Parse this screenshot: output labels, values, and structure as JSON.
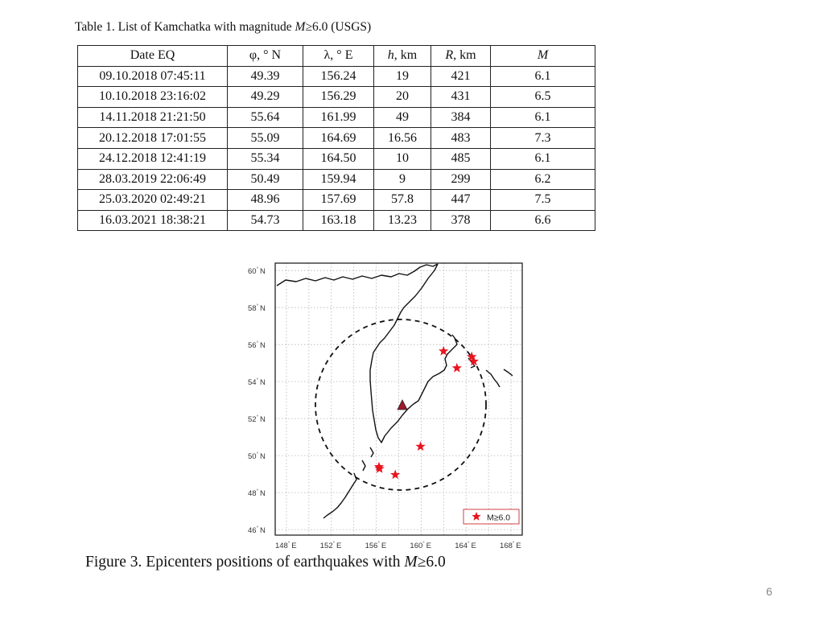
{
  "table": {
    "caption_pre": "Table 1. List of Kamchatka with magnitude ",
    "caption_var": "M",
    "caption_post": "≥6.0 (USGS)",
    "headers": [
      {
        "pre": "Date EQ",
        "var": "",
        "post": ""
      },
      {
        "pre": "φ, ° N",
        "var": "",
        "post": ""
      },
      {
        "pre": "λ, ° E",
        "var": "",
        "post": ""
      },
      {
        "pre": "",
        "var": "h",
        "post": ", km"
      },
      {
        "pre": "",
        "var": "R",
        "post": ", km"
      },
      {
        "pre": "",
        "var": "M",
        "post": ""
      }
    ],
    "rows": [
      [
        "09.10.2018 07:45:11",
        "49.39",
        "156.24",
        "19",
        "421",
        "6.1"
      ],
      [
        "10.10.2018 23:16:02",
        "49.29",
        "156.29",
        "20",
        "431",
        "6.5"
      ],
      [
        "14.11.2018 21:21:50",
        "55.64",
        "161.99",
        "49",
        "384",
        "6.1"
      ],
      [
        "20.12.2018 17:01:55",
        "55.09",
        "164.69",
        "16.56",
        "483",
        "7.3"
      ],
      [
        "24.12.2018 12:41:19",
        "55.34",
        "164.50",
        "10",
        "485",
        "6.1"
      ],
      [
        "28.03.2019 22:06:49",
        "50.49",
        "159.94",
        "9",
        "299",
        "6.2"
      ],
      [
        "25.03.2020 02:49:21",
        "48.96",
        "157.69",
        "57.8",
        "447",
        "7.5"
      ],
      [
        "16.03.2021 18:38:21",
        "54.73",
        "163.18",
        "13.23",
        "378",
        "6.6"
      ]
    ]
  },
  "map": {
    "lat_labels": [
      "60",
      "58",
      "56",
      "54",
      "52",
      "50",
      "48",
      "46"
    ],
    "lat_unit": "N",
    "lon_labels": [
      "148",
      "152",
      "156",
      "160",
      "164",
      "168"
    ],
    "lon_unit": "E",
    "legend_label": "M≥6.0",
    "star_color": "#e8141e",
    "station_color": "#a0192a"
  },
  "figure": {
    "caption_pre": "Figure 3. Epicenters positions of earthquakes with ",
    "caption_var": "M",
    "caption_post": "≥6.0"
  },
  "page_number": "6"
}
